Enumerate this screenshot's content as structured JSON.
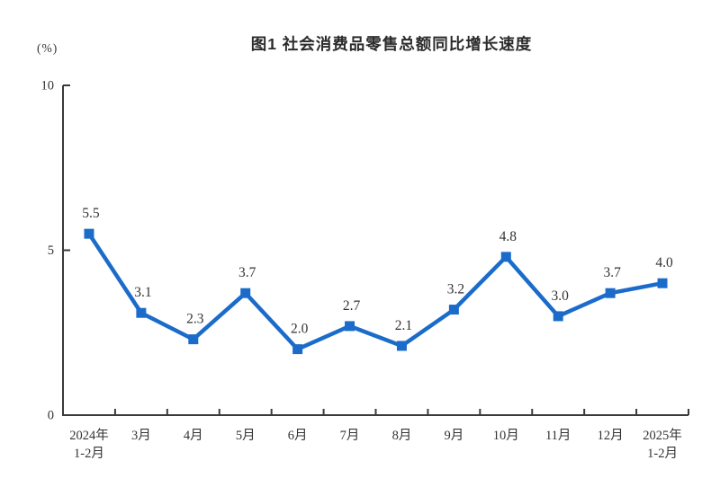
{
  "figure": {
    "title": "图1 社会消费品零售总额同比增长速度",
    "unit_label": "(%)"
  },
  "chart_data": {
    "type": "line",
    "title": "图1 社会消费品零售总额同比增长速度",
    "categories": [
      "2024年\n1-2月",
      "3月",
      "4月",
      "5月",
      "6月",
      "7月",
      "8月",
      "9月",
      "10月",
      "11月",
      "12月",
      "2025年\n1-2月"
    ],
    "values": [
      5.5,
      3.1,
      2.3,
      3.7,
      2.0,
      2.7,
      2.1,
      3.2,
      4.8,
      3.0,
      3.7,
      4.0
    ],
    "data_labels": [
      "5.5",
      "3.1",
      "2.3",
      "3.7",
      "2.0",
      "2.7",
      "2.1",
      "3.2",
      "4.8",
      "3.0",
      "3.7",
      "4.0"
    ],
    "xlabel": "",
    "ylabel": "(%)",
    "ylim": [
      0,
      10
    ],
    "yticks": [
      0,
      5,
      10
    ],
    "grid": false,
    "legend": "none",
    "line_color": "#1b6cca",
    "marker": "square",
    "axis_color": "#3a3a3a",
    "text_color": "#333333"
  }
}
